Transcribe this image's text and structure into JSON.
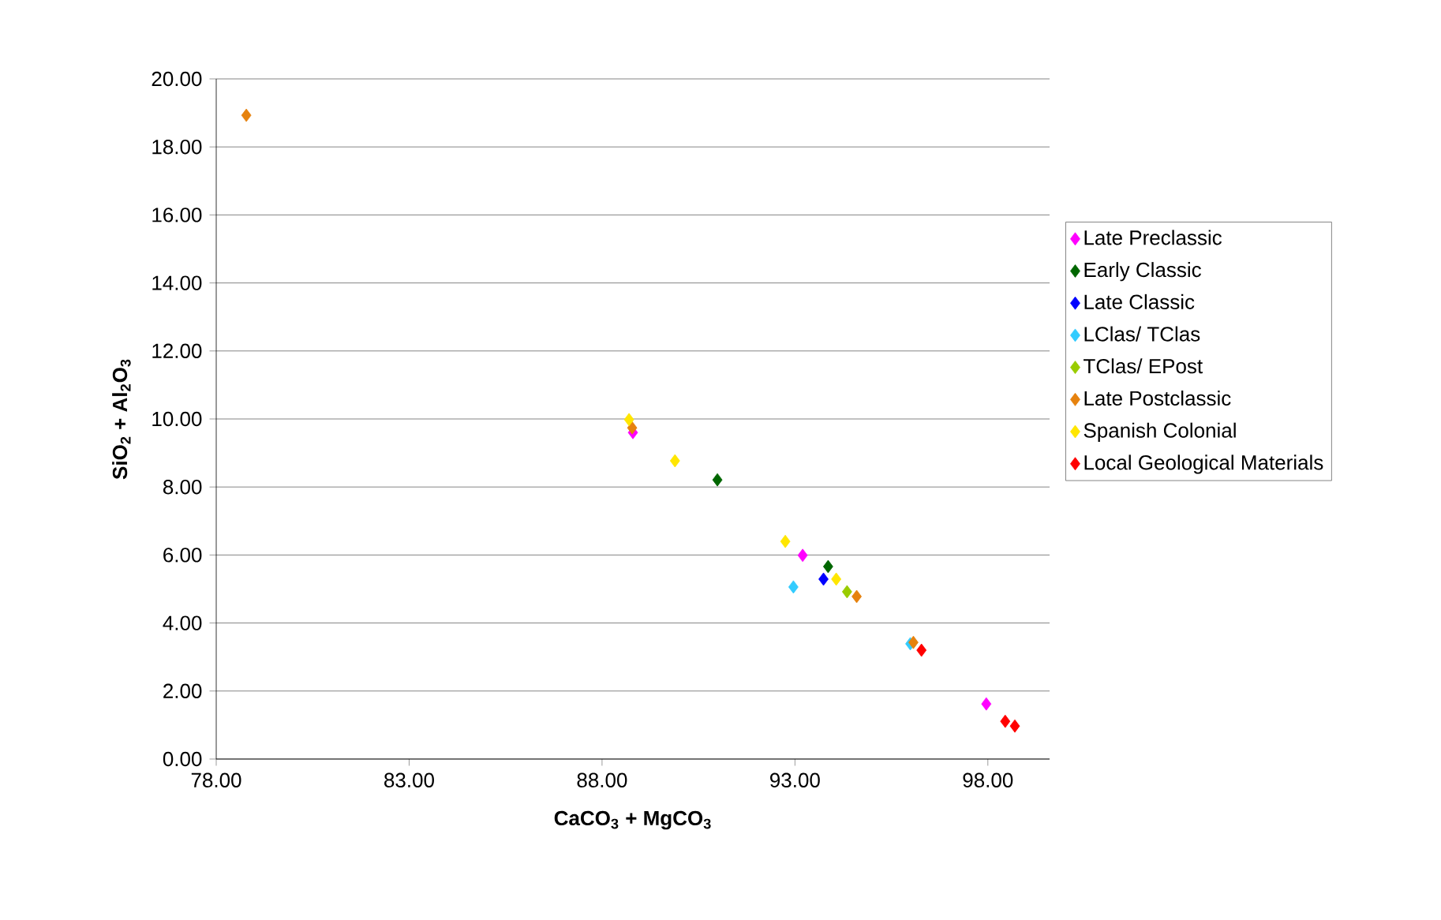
{
  "chart_data": {
    "type": "scatter",
    "xlabel": "CaCO$_{3}$ + MgCO$_{3}$",
    "ylabel": "SiO$_{2}$ + Al$_{2}$O$_{3}$",
    "xlim": [
      78,
      99.6
    ],
    "ylim": [
      0,
      20
    ],
    "xticks": [
      {
        "value": 78,
        "label": "78.00"
      },
      {
        "value": 83,
        "label": "83.00"
      },
      {
        "value": 88,
        "label": "88.00"
      },
      {
        "value": 93,
        "label": "93.00"
      },
      {
        "value": 98,
        "label": "98.00"
      }
    ],
    "yticks": [
      {
        "value": 0,
        "label": "0.00"
      },
      {
        "value": 2,
        "label": "2.00"
      },
      {
        "value": 4,
        "label": "4.00"
      },
      {
        "value": 6,
        "label": "6.00"
      },
      {
        "value": 8,
        "label": "8.00"
      },
      {
        "value": 10,
        "label": "10.00"
      },
      {
        "value": 12,
        "label": "12.00"
      },
      {
        "value": 14,
        "label": "14.00"
      },
      {
        "value": 16,
        "label": "16.00"
      },
      {
        "value": 18,
        "label": "18.00"
      },
      {
        "value": 20,
        "label": "20.00"
      }
    ],
    "grid": "y",
    "legend": "right",
    "marker": "diamond",
    "series": [
      {
        "name": "Late Preclassic",
        "color": "#ff00ff",
        "x": [
          88.8,
          93.2,
          97.96
        ],
        "values": [
          9.6,
          5.99,
          1.62
        ]
      },
      {
        "name": "Early Classic",
        "color": "#006600",
        "x": [
          90.99,
          93.86
        ],
        "values": [
          8.21,
          5.66
        ]
      },
      {
        "name": "Late Classic",
        "color": "#0000ff",
        "x": [
          93.74
        ],
        "values": [
          5.29
        ]
      },
      {
        "name": "LClas/ TClas",
        "color": "#33ccff",
        "x": [
          92.96,
          95.99
        ],
        "values": [
          5.06,
          3.39
        ]
      },
      {
        "name": "TClas/ EPost",
        "color": "#99cc00",
        "x": [
          94.35
        ],
        "values": [
          4.92
        ]
      },
      {
        "name": "Late Postclassic",
        "color": "#e6820e",
        "x": [
          78.78,
          88.78,
          94.6,
          96.07
        ],
        "values": [
          18.93,
          9.74,
          4.78,
          3.43
        ]
      },
      {
        "name": "Spanish Colonial",
        "color": "#ffe600",
        "x": [
          88.7,
          89.89,
          92.75,
          94.07
        ],
        "values": [
          9.98,
          8.77,
          6.4,
          5.29
        ]
      },
      {
        "name": "Local Geological Materials",
        "color": "#ff0000",
        "x": [
          96.28,
          98.45,
          98.7
        ],
        "values": [
          3.2,
          1.11,
          0.97
        ]
      }
    ]
  }
}
